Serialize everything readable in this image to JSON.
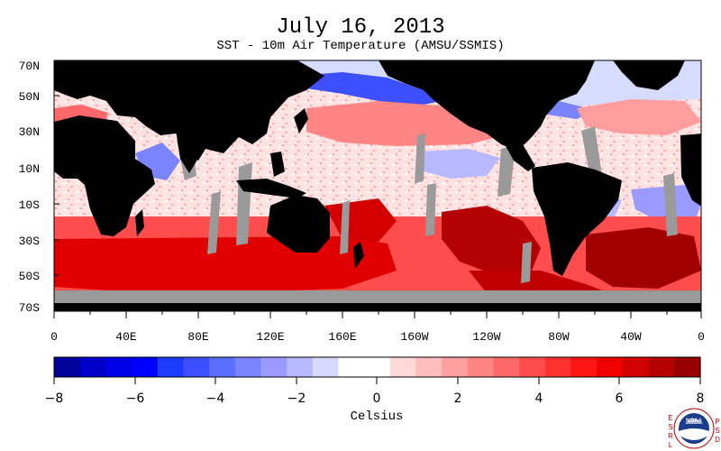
{
  "title": "July 16, 2013",
  "subtitle": "SST - 10m Air Temperature (AMSU/SSMIS)",
  "map": {
    "lat_labels": [
      "70N",
      "50N",
      "30N",
      "10N",
      "10S",
      "30S",
      "50S",
      "70S"
    ],
    "lon_labels": [
      "0",
      "40E",
      "80E",
      "120E",
      "160E",
      "160W",
      "120W",
      "80W",
      "40W",
      "0"
    ],
    "colors": {
      "ocean_base": "#f8d4d4",
      "land": "#000000",
      "missing": "#9a9a9a",
      "ice": "#9a9a9a"
    }
  },
  "colorbar": {
    "ticks": [
      "−8",
      "−6",
      "−4",
      "−2",
      "0",
      "2",
      "4",
      "6",
      "8"
    ],
    "unit_label": "Celsius",
    "range": [
      -8,
      8
    ],
    "colors": [
      "#00009a",
      "#0000c8",
      "#0000e6",
      "#0000ff",
      "#1e3cff",
      "#3c50ff",
      "#5a6eff",
      "#7a84ff",
      "#9a9aff",
      "#b8b8ff",
      "#d8d8ff",
      "#ffffff",
      "#ffffff",
      "#ffd8d8",
      "#ffbcbc",
      "#ffa0a0",
      "#ff8484",
      "#ff6868",
      "#ff4c4c",
      "#ff3030",
      "#ff1414",
      "#f00000",
      "#d20000",
      "#b40000",
      "#960000"
    ]
  },
  "logo": {
    "left_letters": "ESRL",
    "right_letters": "PSD",
    "name": "NOAA"
  }
}
